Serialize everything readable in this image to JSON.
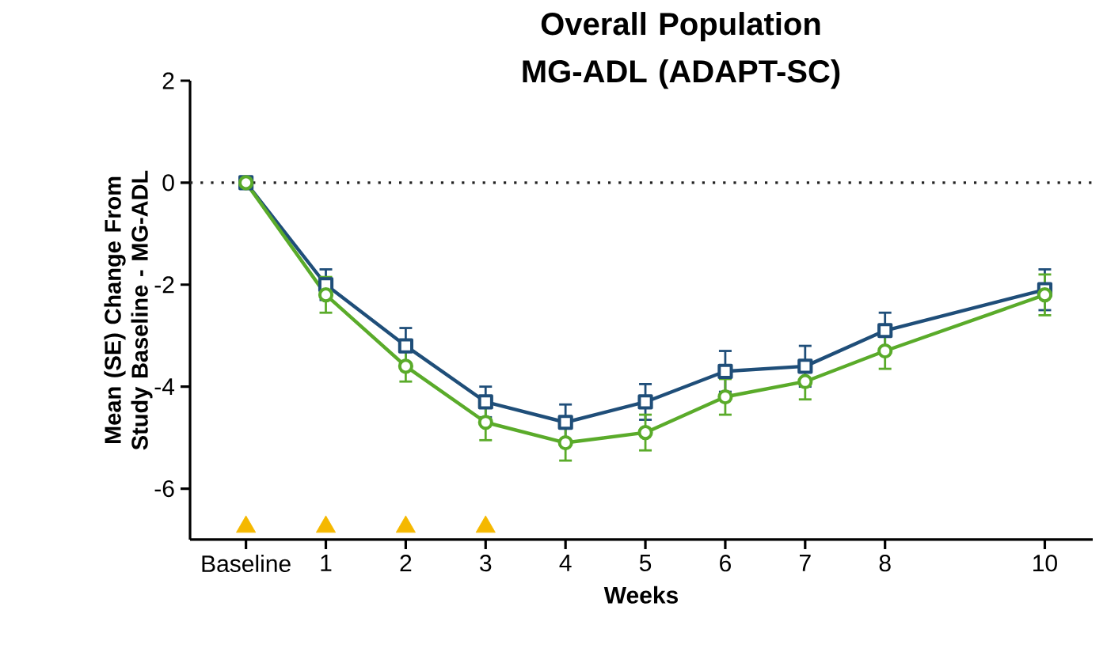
{
  "chart_data": {
    "type": "line",
    "title": "Overall Population MG-ADL (ADAPT-SC)",
    "xlabel": "Weeks",
    "ylabel": "Mean (SE) Change From Study Baseline - MG-ADL",
    "x": [
      0,
      1,
      2,
      3,
      4,
      5,
      6,
      7,
      8,
      10
    ],
    "xlim": [
      -0.7,
      10.6
    ],
    "xticks": [
      {
        "value": 0,
        "label": "Baseline"
      },
      1,
      2,
      3,
      4,
      5,
      6,
      7,
      8,
      10
    ],
    "ylim": [
      -7,
      2
    ],
    "yticks": [
      -6,
      -4,
      -2,
      0,
      2
    ],
    "series": [
      {
        "color": "#1f4e79",
        "marker": "square",
        "values": [
          0,
          -2.0,
          -3.2,
          -4.3,
          -4.7,
          -4.3,
          -3.7,
          -3.6,
          -2.9,
          -2.1
        ],
        "errors": [
          null,
          0.3,
          0.35,
          0.3,
          0.35,
          0.35,
          0.4,
          0.4,
          0.35,
          0.4
        ]
      },
      {
        "color": "#5aab2a",
        "marker": "circle",
        "values": [
          0,
          -2.2,
          -3.6,
          -4.7,
          -5.1,
          -4.9,
          -4.2,
          -3.9,
          -3.3,
          -2.2
        ],
        "errors": [
          null,
          0.35,
          0.3,
          0.35,
          0.35,
          0.35,
          0.35,
          0.35,
          0.35,
          0.4
        ]
      },
      {
        "type": "scatter",
        "color": "#f5b800",
        "marker": "triangle",
        "x": [
          0,
          1,
          2,
          3
        ],
        "values": [
          -6.75,
          -6.75,
          -6.75,
          -6.75
        ]
      }
    ],
    "ref_lines": [
      {
        "axis": "y",
        "value": 0,
        "line_style": "dotted",
        "color": "#222222"
      }
    ],
    "grid": false
  }
}
